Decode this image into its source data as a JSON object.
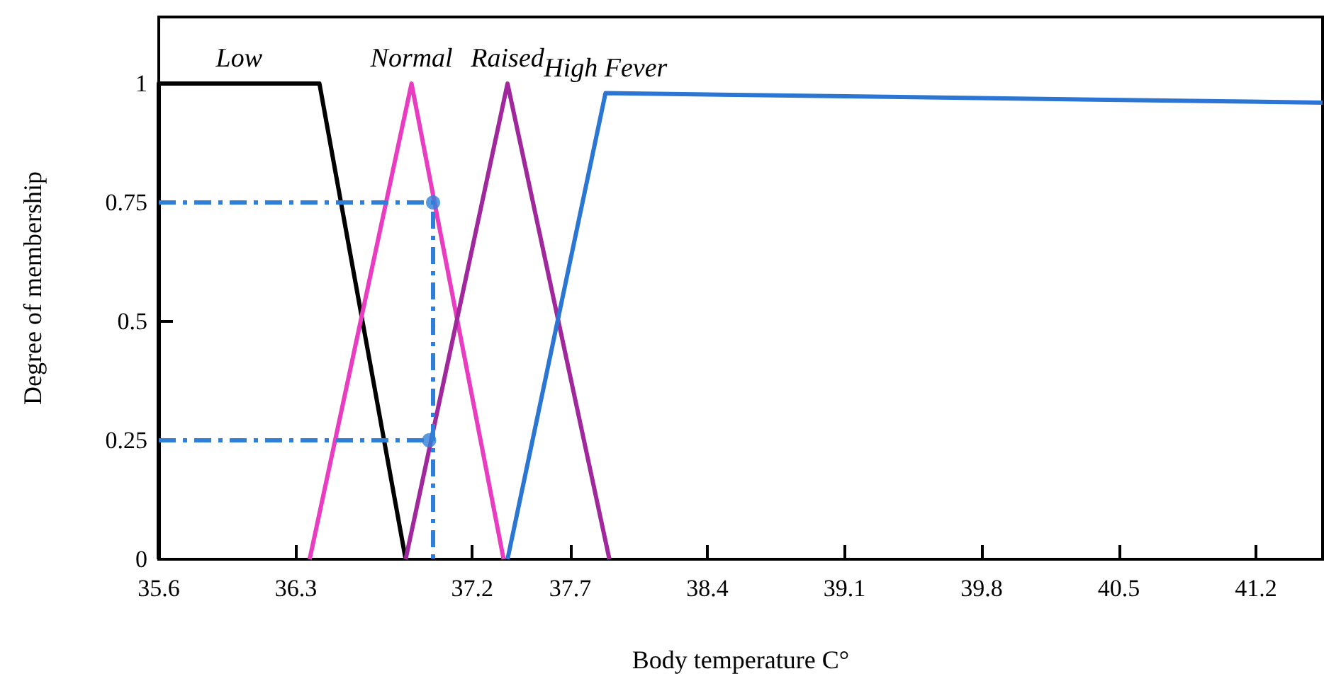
{
  "chart_data": {
    "type": "line",
    "xlabel": "Body temperature C°",
    "ylabel": "Degree of membership",
    "xlim": [
      35.6,
      41.54
    ],
    "ylim": [
      0,
      1.14
    ],
    "xticks": [
      35.6,
      36.3,
      37.2,
      37.7,
      38.4,
      39.1,
      39.8,
      40.5,
      41.2
    ],
    "yticks": [
      0,
      0.25,
      0.5,
      0.75,
      1
    ],
    "grid": false,
    "legend": false,
    "marker": "none",
    "line_style": "solid",
    "series": [
      {
        "name": "Low",
        "color": "#000000",
        "x": [
          35.6,
          35.6,
          36.42,
          36.86
        ],
        "values": [
          0,
          1,
          1,
          0
        ]
      },
      {
        "name": "Normal",
        "color": "#e93cc0",
        "x": [
          36.37,
          36.89,
          37.36
        ],
        "values": [
          0,
          1,
          0
        ]
      },
      {
        "name": "Raised",
        "color": "#a0289c",
        "x": [
          36.86,
          37.38,
          37.9
        ],
        "values": [
          0,
          1,
          0
        ]
      },
      {
        "name": "High Fever",
        "color": "#2a76d2",
        "x": [
          37.38,
          37.88,
          41.54
        ],
        "values": [
          0,
          0.98,
          0.96
        ]
      },
      {
        "color": "#2f7fd8",
        "line_style": "dashed",
        "x": [
          35.6,
          37.0,
          37.0
        ],
        "values": [
          0.75,
          0.75,
          0
        ]
      },
      {
        "color": "#2f7fd8",
        "line_style": "dashed",
        "x": [
          35.6,
          36.98
        ],
        "values": [
          0.25,
          0.25
        ]
      },
      {
        "type": "scatter",
        "color": "#2f7fd8",
        "marker": "circle",
        "x": [
          37.0,
          36.98
        ],
        "values": [
          0.75,
          0.25
        ]
      }
    ]
  }
}
